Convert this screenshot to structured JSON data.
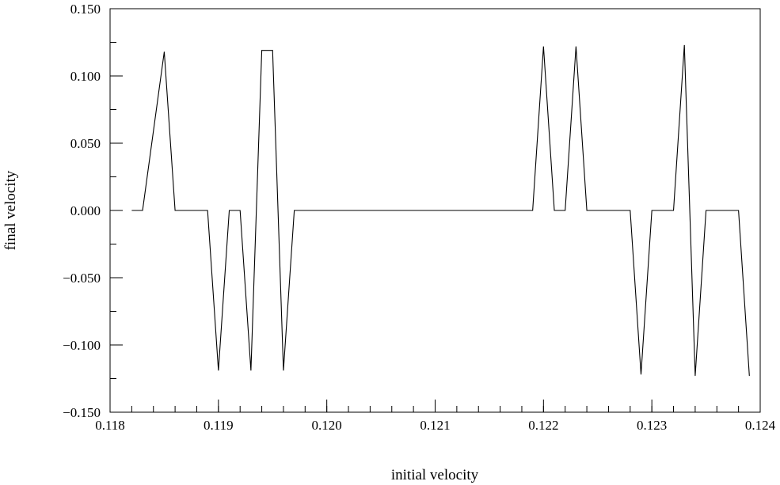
{
  "chart_data": {
    "type": "line",
    "title": "",
    "xlabel": "initial velocity",
    "ylabel": "final velocity",
    "xlim": [
      0.118,
      0.124
    ],
    "ylim": [
      -0.15,
      0.15
    ],
    "xticks": [
      0.118,
      0.119,
      0.12,
      0.121,
      0.122,
      0.123,
      0.124
    ],
    "xtick_labels": [
      "0.118",
      "0.119",
      "0.120",
      "0.121",
      "0.122",
      "0.123",
      "0.124"
    ],
    "yticks": [
      0.15,
      0.1,
      0.05,
      0.0,
      -0.05,
      -0.1,
      -0.15
    ],
    "ytick_labels": [
      "0.150",
      "0.100",
      "0.050",
      "0.000",
      "−0.050",
      "−0.100",
      "−0.150"
    ],
    "grid": false,
    "legend": "none",
    "series": [
      {
        "color": "#000000",
        "x": [
          0.1182,
          0.1183,
          0.1185,
          0.1186,
          0.1189,
          0.119,
          0.1191,
          0.1192,
          0.1193,
          0.1194,
          0.1195,
          0.1196,
          0.1197,
          0.1219,
          0.122,
          0.1221,
          0.1222,
          0.1223,
          0.1224,
          0.1228,
          0.1229,
          0.123,
          0.1232,
          0.1233,
          0.1234,
          0.1235,
          0.1238,
          0.1239
        ],
        "y": [
          0.0,
          0.0,
          0.118,
          0.0,
          0.0,
          -0.119,
          0.0,
          0.0,
          -0.119,
          0.119,
          0.119,
          -0.119,
          0.0,
          0.0,
          0.122,
          0.0,
          0.0,
          0.122,
          0.0,
          0.0,
          -0.122,
          0.0,
          0.0,
          0.123,
          -0.123,
          0.0,
          0.0,
          -0.123
        ]
      }
    ]
  }
}
